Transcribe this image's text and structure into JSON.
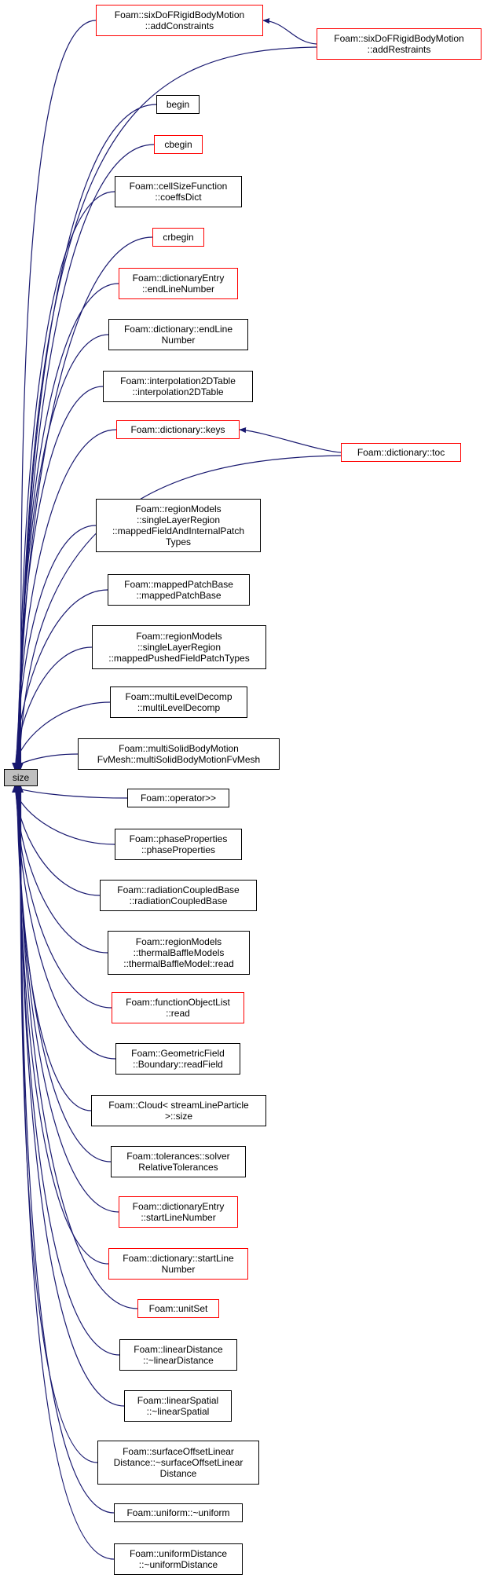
{
  "graph": {
    "root": {
      "id": "size",
      "label": "size"
    },
    "colors": {
      "edge": "#191970",
      "normal_border": "#000000",
      "truncated_border": "#ff0000",
      "root_fill": "#bfbfbf"
    },
    "callers": [
      {
        "id": "addConstraints",
        "label": "Foam::sixDoFRigidBodyMotion\n::addConstraints",
        "truncated": true
      },
      {
        "id": "begin",
        "label": "begin",
        "truncated": false
      },
      {
        "id": "cbegin",
        "label": "cbegin",
        "truncated": true
      },
      {
        "id": "coeffsDict",
        "label": "Foam::cellSizeFunction\n::coeffsDict",
        "truncated": false
      },
      {
        "id": "crbegin",
        "label": "crbegin",
        "truncated": true
      },
      {
        "id": "dictEntryEndLine",
        "label": "Foam::dictionaryEntry\n::endLineNumber",
        "truncated": true
      },
      {
        "id": "dictEndLine",
        "label": "Foam::dictionary::endLine\nNumber",
        "truncated": false
      },
      {
        "id": "interp2D",
        "label": "Foam::interpolation2DTable\n::interpolation2DTable",
        "truncated": false
      },
      {
        "id": "keys",
        "label": "Foam::dictionary::keys",
        "truncated": true
      },
      {
        "id": "mappedFieldTypes",
        "label": "Foam::regionModels\n::singleLayerRegion\n::mappedFieldAndInternalPatch\nTypes",
        "truncated": false
      },
      {
        "id": "mappedPatchBase",
        "label": "Foam::mappedPatchBase\n::mappedPatchBase",
        "truncated": false
      },
      {
        "id": "mappedPushed",
        "label": "Foam::regionModels\n::singleLayerRegion\n::mappedPushedFieldPatchTypes",
        "truncated": false
      },
      {
        "id": "multiLevel",
        "label": "Foam::multiLevelDecomp\n::multiLevelDecomp",
        "truncated": false
      },
      {
        "id": "multiSolid",
        "label": "Foam::multiSolidBodyMotion\nFvMesh::multiSolidBodyMotionFvMesh",
        "truncated": false
      },
      {
        "id": "operatorRR",
        "label": "Foam::operator>>",
        "truncated": false
      },
      {
        "id": "phaseProps",
        "label": "Foam::phaseProperties\n::phaseProperties",
        "truncated": false
      },
      {
        "id": "radCoupled",
        "label": "Foam::radiationCoupledBase\n::radiationCoupledBase",
        "truncated": false
      },
      {
        "id": "thermalBaffle",
        "label": "Foam::regionModels\n::thermalBaffleModels\n::thermalBaffleModel::read",
        "truncated": false
      },
      {
        "id": "funcObjList",
        "label": "Foam::functionObjectList\n::read",
        "truncated": true
      },
      {
        "id": "readField",
        "label": "Foam::GeometricField\n::Boundary::readField",
        "truncated": false
      },
      {
        "id": "cloudSize",
        "label": "Foam::Cloud< streamLineParticle\n>::size",
        "truncated": false
      },
      {
        "id": "solverRel",
        "label": "Foam::tolerances::solver\nRelativeTolerances",
        "truncated": false
      },
      {
        "id": "dictEntryStartLine",
        "label": "Foam::dictionaryEntry\n::startLineNumber",
        "truncated": true
      },
      {
        "id": "dictStartLine",
        "label": "Foam::dictionary::startLine\nNumber",
        "truncated": true
      },
      {
        "id": "unitSet",
        "label": "Foam::unitSet",
        "truncated": true
      },
      {
        "id": "linearDistance",
        "label": "Foam::linearDistance\n::~linearDistance",
        "truncated": false
      },
      {
        "id": "linearSpatial",
        "label": "Foam::linearSpatial\n::~linearSpatial",
        "truncated": false
      },
      {
        "id": "surfaceOffset",
        "label": "Foam::surfaceOffsetLinear\nDistance::~surfaceOffsetLinear\nDistance",
        "truncated": false
      },
      {
        "id": "uniform",
        "label": "Foam::uniform::~uniform",
        "truncated": false
      },
      {
        "id": "uniformDistance",
        "label": "Foam::uniformDistance\n::~uniformDistance",
        "truncated": false
      }
    ],
    "second_level": [
      {
        "id": "addRestraints",
        "label": "Foam::sixDoFRigidBodyMotion\n::addRestraints",
        "truncated": true,
        "calls": "addConstraints"
      },
      {
        "id": "toc",
        "label": "Foam::dictionary::toc",
        "truncated": true,
        "calls": "keys"
      }
    ]
  }
}
